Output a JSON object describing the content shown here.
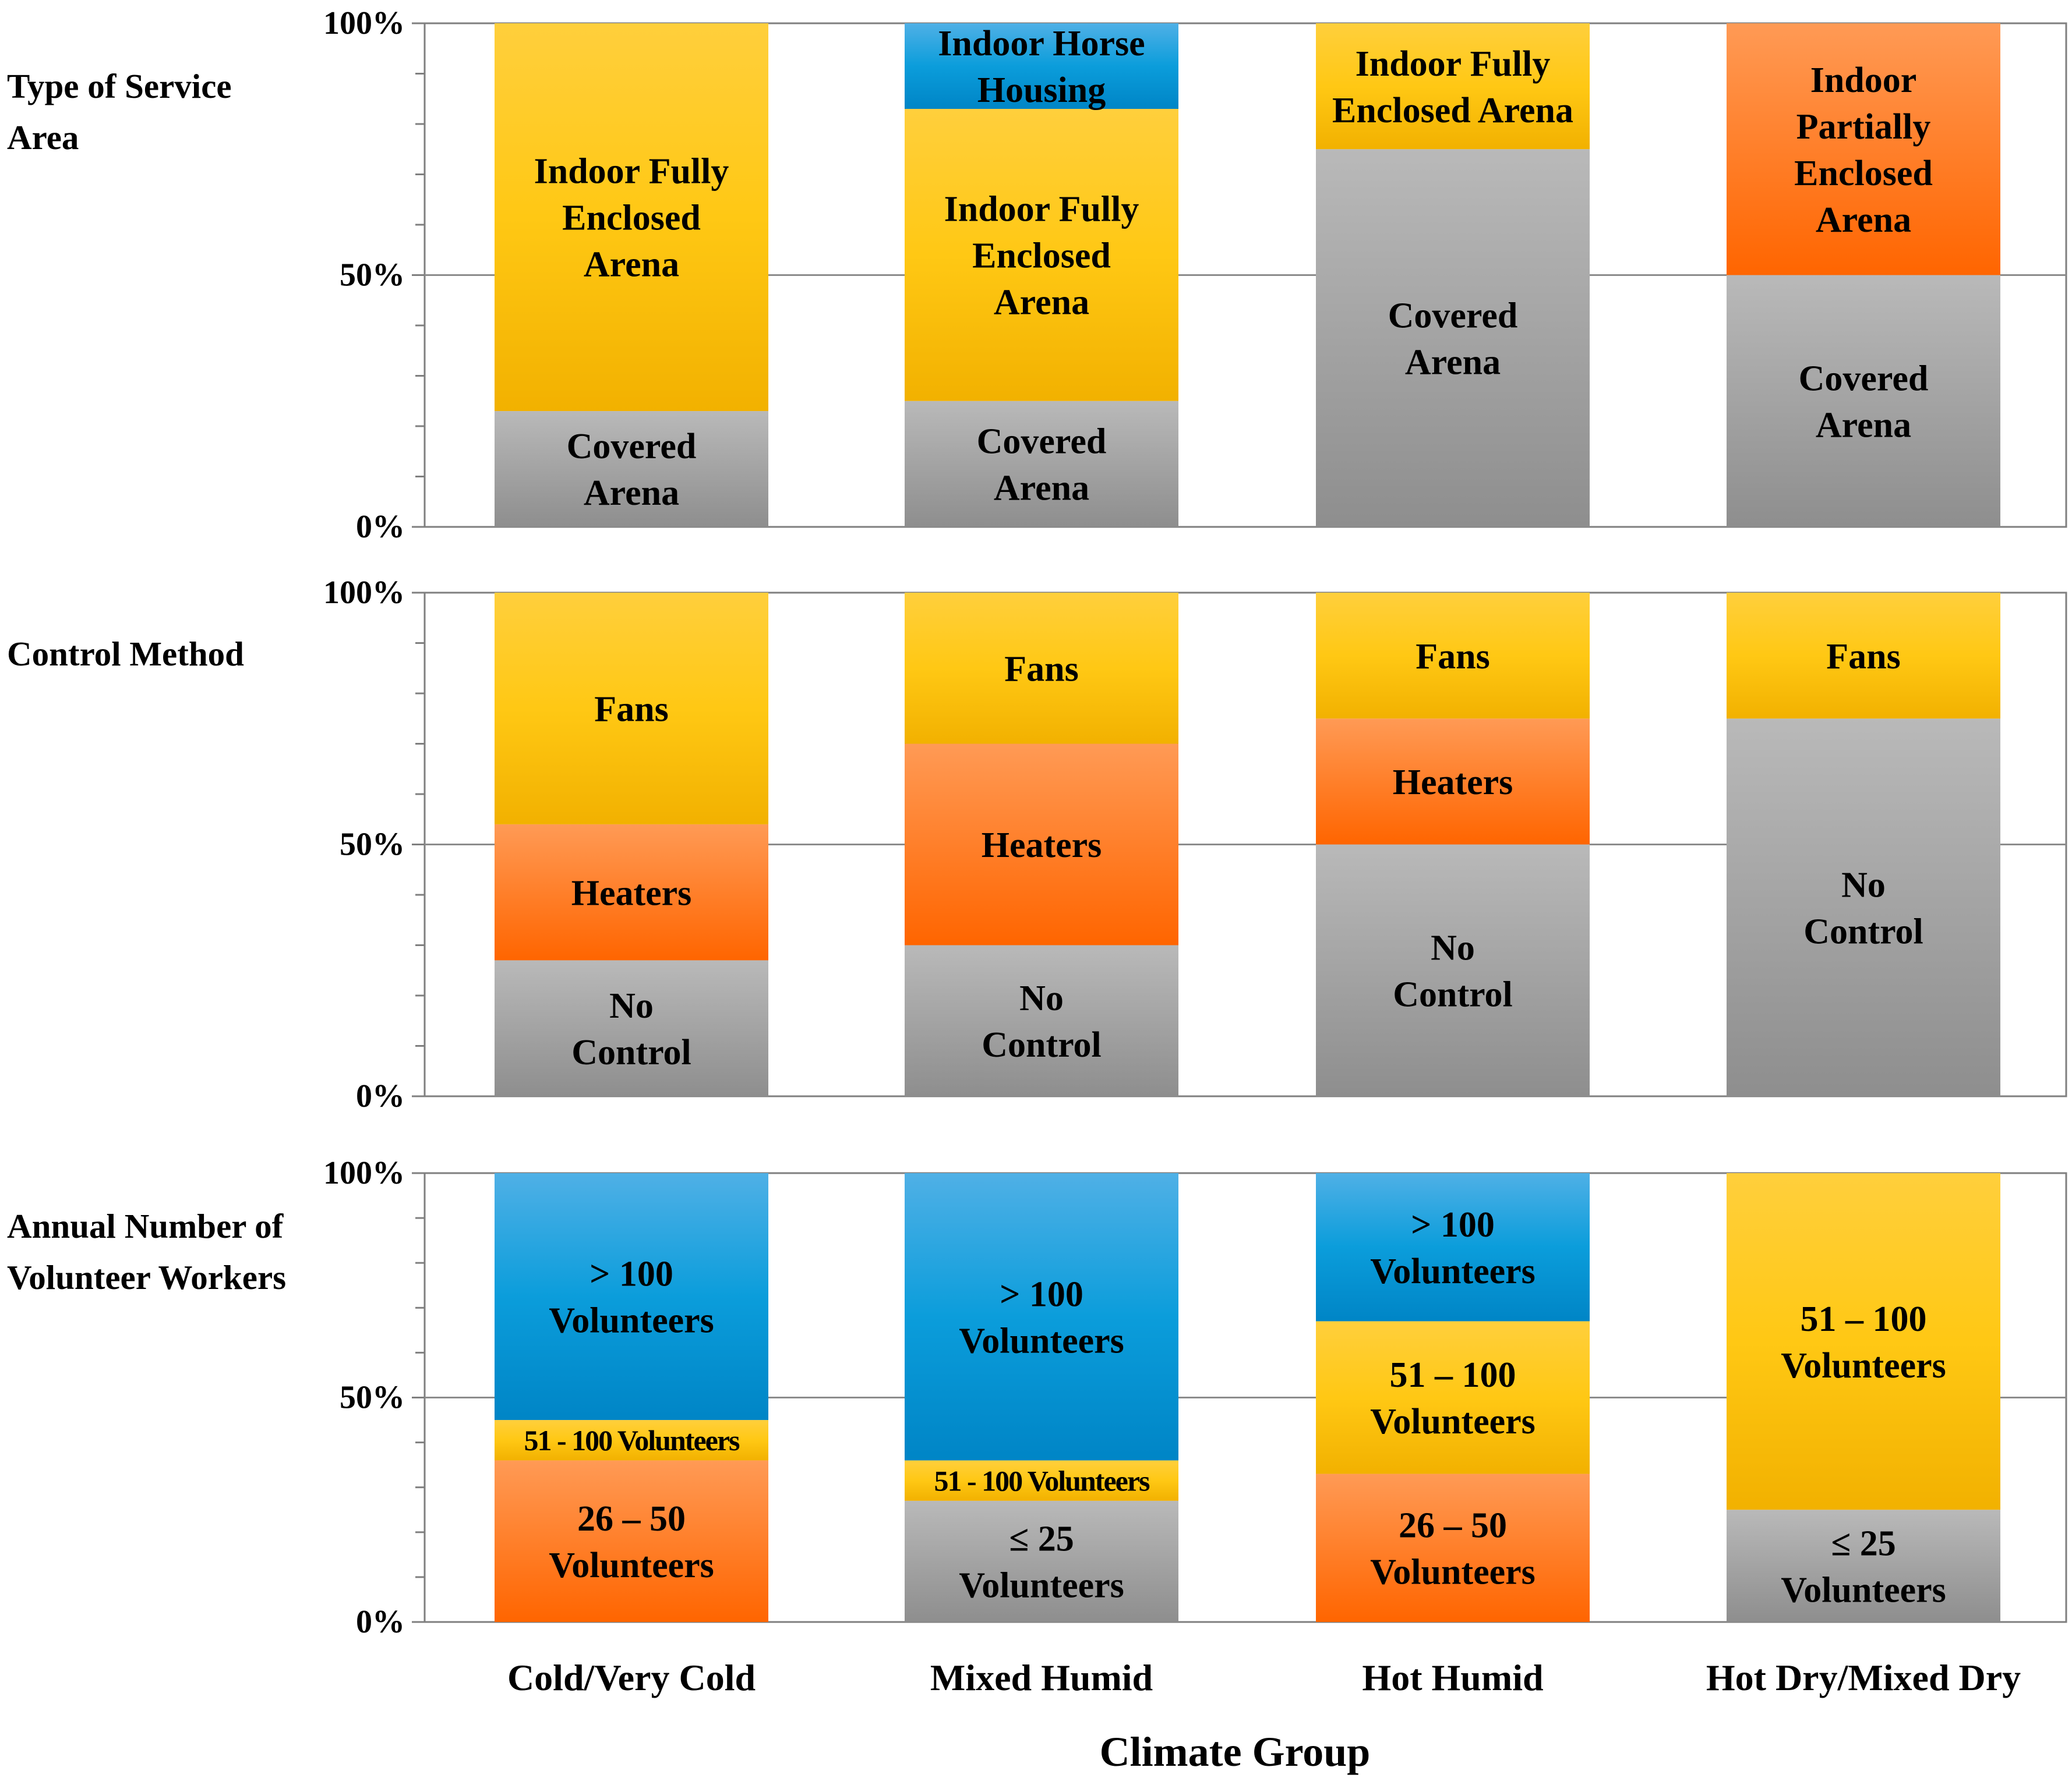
{
  "chart_data": {
    "type": "bar",
    "stacked": true,
    "normalized": true,
    "xlabel": "Climate Group",
    "categories": [
      "Cold/Very Cold",
      "Mixed Humid",
      "Hot Humid",
      "Hot Dry/Mixed Dry"
    ],
    "yticks": [
      "0%",
      "50%",
      "100%"
    ],
    "ylim": [
      0,
      100
    ],
    "panels": [
      {
        "name": "type-of-service-area",
        "title_lines": [
          "Type of Service",
          "Area"
        ],
        "bars": [
          {
            "segments": [
              {
                "label": [
                  "Covered",
                  "Arena"
                ],
                "value": 23,
                "color": "gray"
              },
              {
                "label": [
                  "Indoor Fully",
                  "Enclosed",
                  "Arena"
                ],
                "value": 77,
                "color": "yellow"
              }
            ]
          },
          {
            "segments": [
              {
                "label": [
                  "Covered",
                  "Arena"
                ],
                "value": 25,
                "color": "gray"
              },
              {
                "label": [
                  "Indoor Fully",
                  "Enclosed",
                  "Arena"
                ],
                "value": 58,
                "color": "yellow"
              },
              {
                "label": [
                  "Indoor Horse",
                  "Housing"
                ],
                "value": 17,
                "color": "blue"
              }
            ]
          },
          {
            "segments": [
              {
                "label": [
                  "Covered",
                  "Arena"
                ],
                "value": 75,
                "color": "gray"
              },
              {
                "label": [
                  "Indoor Fully",
                  "Enclosed Arena"
                ],
                "value": 25,
                "color": "yellow"
              }
            ]
          },
          {
            "segments": [
              {
                "label": [
                  "Covered",
                  "Arena"
                ],
                "value": 50,
                "color": "gray"
              },
              {
                "label": [
                  "Indoor",
                  "Partially",
                  "Enclosed",
                  "Arena"
                ],
                "value": 50,
                "color": "orange"
              }
            ]
          }
        ]
      },
      {
        "name": "control-method",
        "title_lines": [
          "Control Method"
        ],
        "bars": [
          {
            "segments": [
              {
                "label": [
                  "No",
                  "Control"
                ],
                "value": 27,
                "color": "gray"
              },
              {
                "label": [
                  "Heaters"
                ],
                "value": 27,
                "color": "orange"
              },
              {
                "label": [
                  "Fans"
                ],
                "value": 46,
                "color": "yellow"
              }
            ]
          },
          {
            "segments": [
              {
                "label": [
                  "No",
                  "Control"
                ],
                "value": 30,
                "color": "gray"
              },
              {
                "label": [
                  "Heaters"
                ],
                "value": 40,
                "color": "orange"
              },
              {
                "label": [
                  "Fans"
                ],
                "value": 30,
                "color": "yellow"
              }
            ]
          },
          {
            "segments": [
              {
                "label": [
                  "No",
                  "Control"
                ],
                "value": 50,
                "color": "gray"
              },
              {
                "label": [
                  "Heaters"
                ],
                "value": 25,
                "color": "orange"
              },
              {
                "label": [
                  "Fans"
                ],
                "value": 25,
                "color": "yellow"
              }
            ]
          },
          {
            "segments": [
              {
                "label": [
                  "No",
                  "Control"
                ],
                "value": 75,
                "color": "gray"
              },
              {
                "label": [
                  "Fans"
                ],
                "value": 25,
                "color": "yellow"
              }
            ]
          }
        ]
      },
      {
        "name": "annual-number-of-volunteer-workers",
        "title_lines": [
          "Annual Number of",
          "Volunteer Workers"
        ],
        "bars": [
          {
            "segments": [
              {
                "label": [
                  "26 – 50",
                  "Volunteers"
                ],
                "value": 36,
                "color": "orange"
              },
              {
                "label": [
                  "51 - 100 Volunteers"
                ],
                "value": 9,
                "color": "yellow",
                "small": true
              },
              {
                "label": [
                  "> 100",
                  "Volunteers"
                ],
                "value": 55,
                "color": "blue"
              }
            ]
          },
          {
            "segments": [
              {
                "label": [
                  "≤ 25",
                  "Volunteers"
                ],
                "value": 27,
                "color": "gray"
              },
              {
                "label": [
                  "51 - 100 Volunteers"
                ],
                "value": 9,
                "color": "yellow",
                "small": true
              },
              {
                "label": [
                  "> 100",
                  "Volunteers"
                ],
                "value": 64,
                "color": "blue"
              }
            ]
          },
          {
            "segments": [
              {
                "label": [
                  "26 – 50",
                  "Volunteers"
                ],
                "value": 33,
                "color": "orange"
              },
              {
                "label": [
                  "51 – 100",
                  "Volunteers"
                ],
                "value": 34,
                "color": "yellow"
              },
              {
                "label": [
                  "> 100",
                  "Volunteers"
                ],
                "value": 33,
                "color": "blue"
              }
            ]
          },
          {
            "segments": [
              {
                "label": [
                  "≤ 25",
                  "Volunteers"
                ],
                "value": 25,
                "color": "gray"
              },
              {
                "label": [
                  "51 – 100",
                  "Volunteers"
                ],
                "value": 75,
                "color": "yellow"
              }
            ]
          }
        ]
      }
    ]
  },
  "colors": {
    "gray": {
      "top": "#b9b9b9",
      "bottom": "#8e8e8e"
    },
    "yellow": {
      "top": "#ffcf3c",
      "bottom": "#f2b100",
      "mid": "#ffc814"
    },
    "orange": {
      "top": "#ff9a55",
      "bottom": "#ff6500"
    },
    "blue": {
      "top": "#4fb0e6",
      "bottom": "#0085c6",
      "mid": "#0b9ddb"
    },
    "gridline": "#8c8c8c",
    "axis": "#7f7f7f"
  }
}
